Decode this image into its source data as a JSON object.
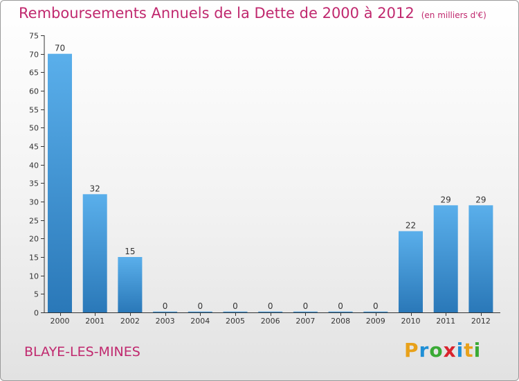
{
  "header": {
    "title": "Remboursements Annuels de la Dette de 2000 à 2012",
    "unit": "(en milliers d'€)"
  },
  "footer": {
    "town": "BLAYE-LES-MINES",
    "logo": "Proxiti"
  },
  "colors": {
    "accent": "#c0286e",
    "bar_top": "#5aafeb",
    "bar_bottom": "#2a78b8"
  },
  "chart_data": {
    "type": "bar",
    "title": "Remboursements Annuels de la Dette de 2000 à 2012",
    "categories": [
      "2000",
      "2001",
      "2002",
      "2003",
      "2004",
      "2005",
      "2006",
      "2007",
      "2008",
      "2009",
      "2010",
      "2011",
      "2012"
    ],
    "values": [
      70,
      32,
      15,
      0,
      0,
      0,
      0,
      0,
      0,
      0,
      22,
      29,
      29
    ],
    "ylim": [
      0,
      75
    ],
    "yticks": [
      0,
      5,
      10,
      15,
      20,
      25,
      30,
      35,
      40,
      45,
      50,
      55,
      60,
      65,
      70,
      75
    ],
    "grid": false,
    "data_labels": true
  }
}
